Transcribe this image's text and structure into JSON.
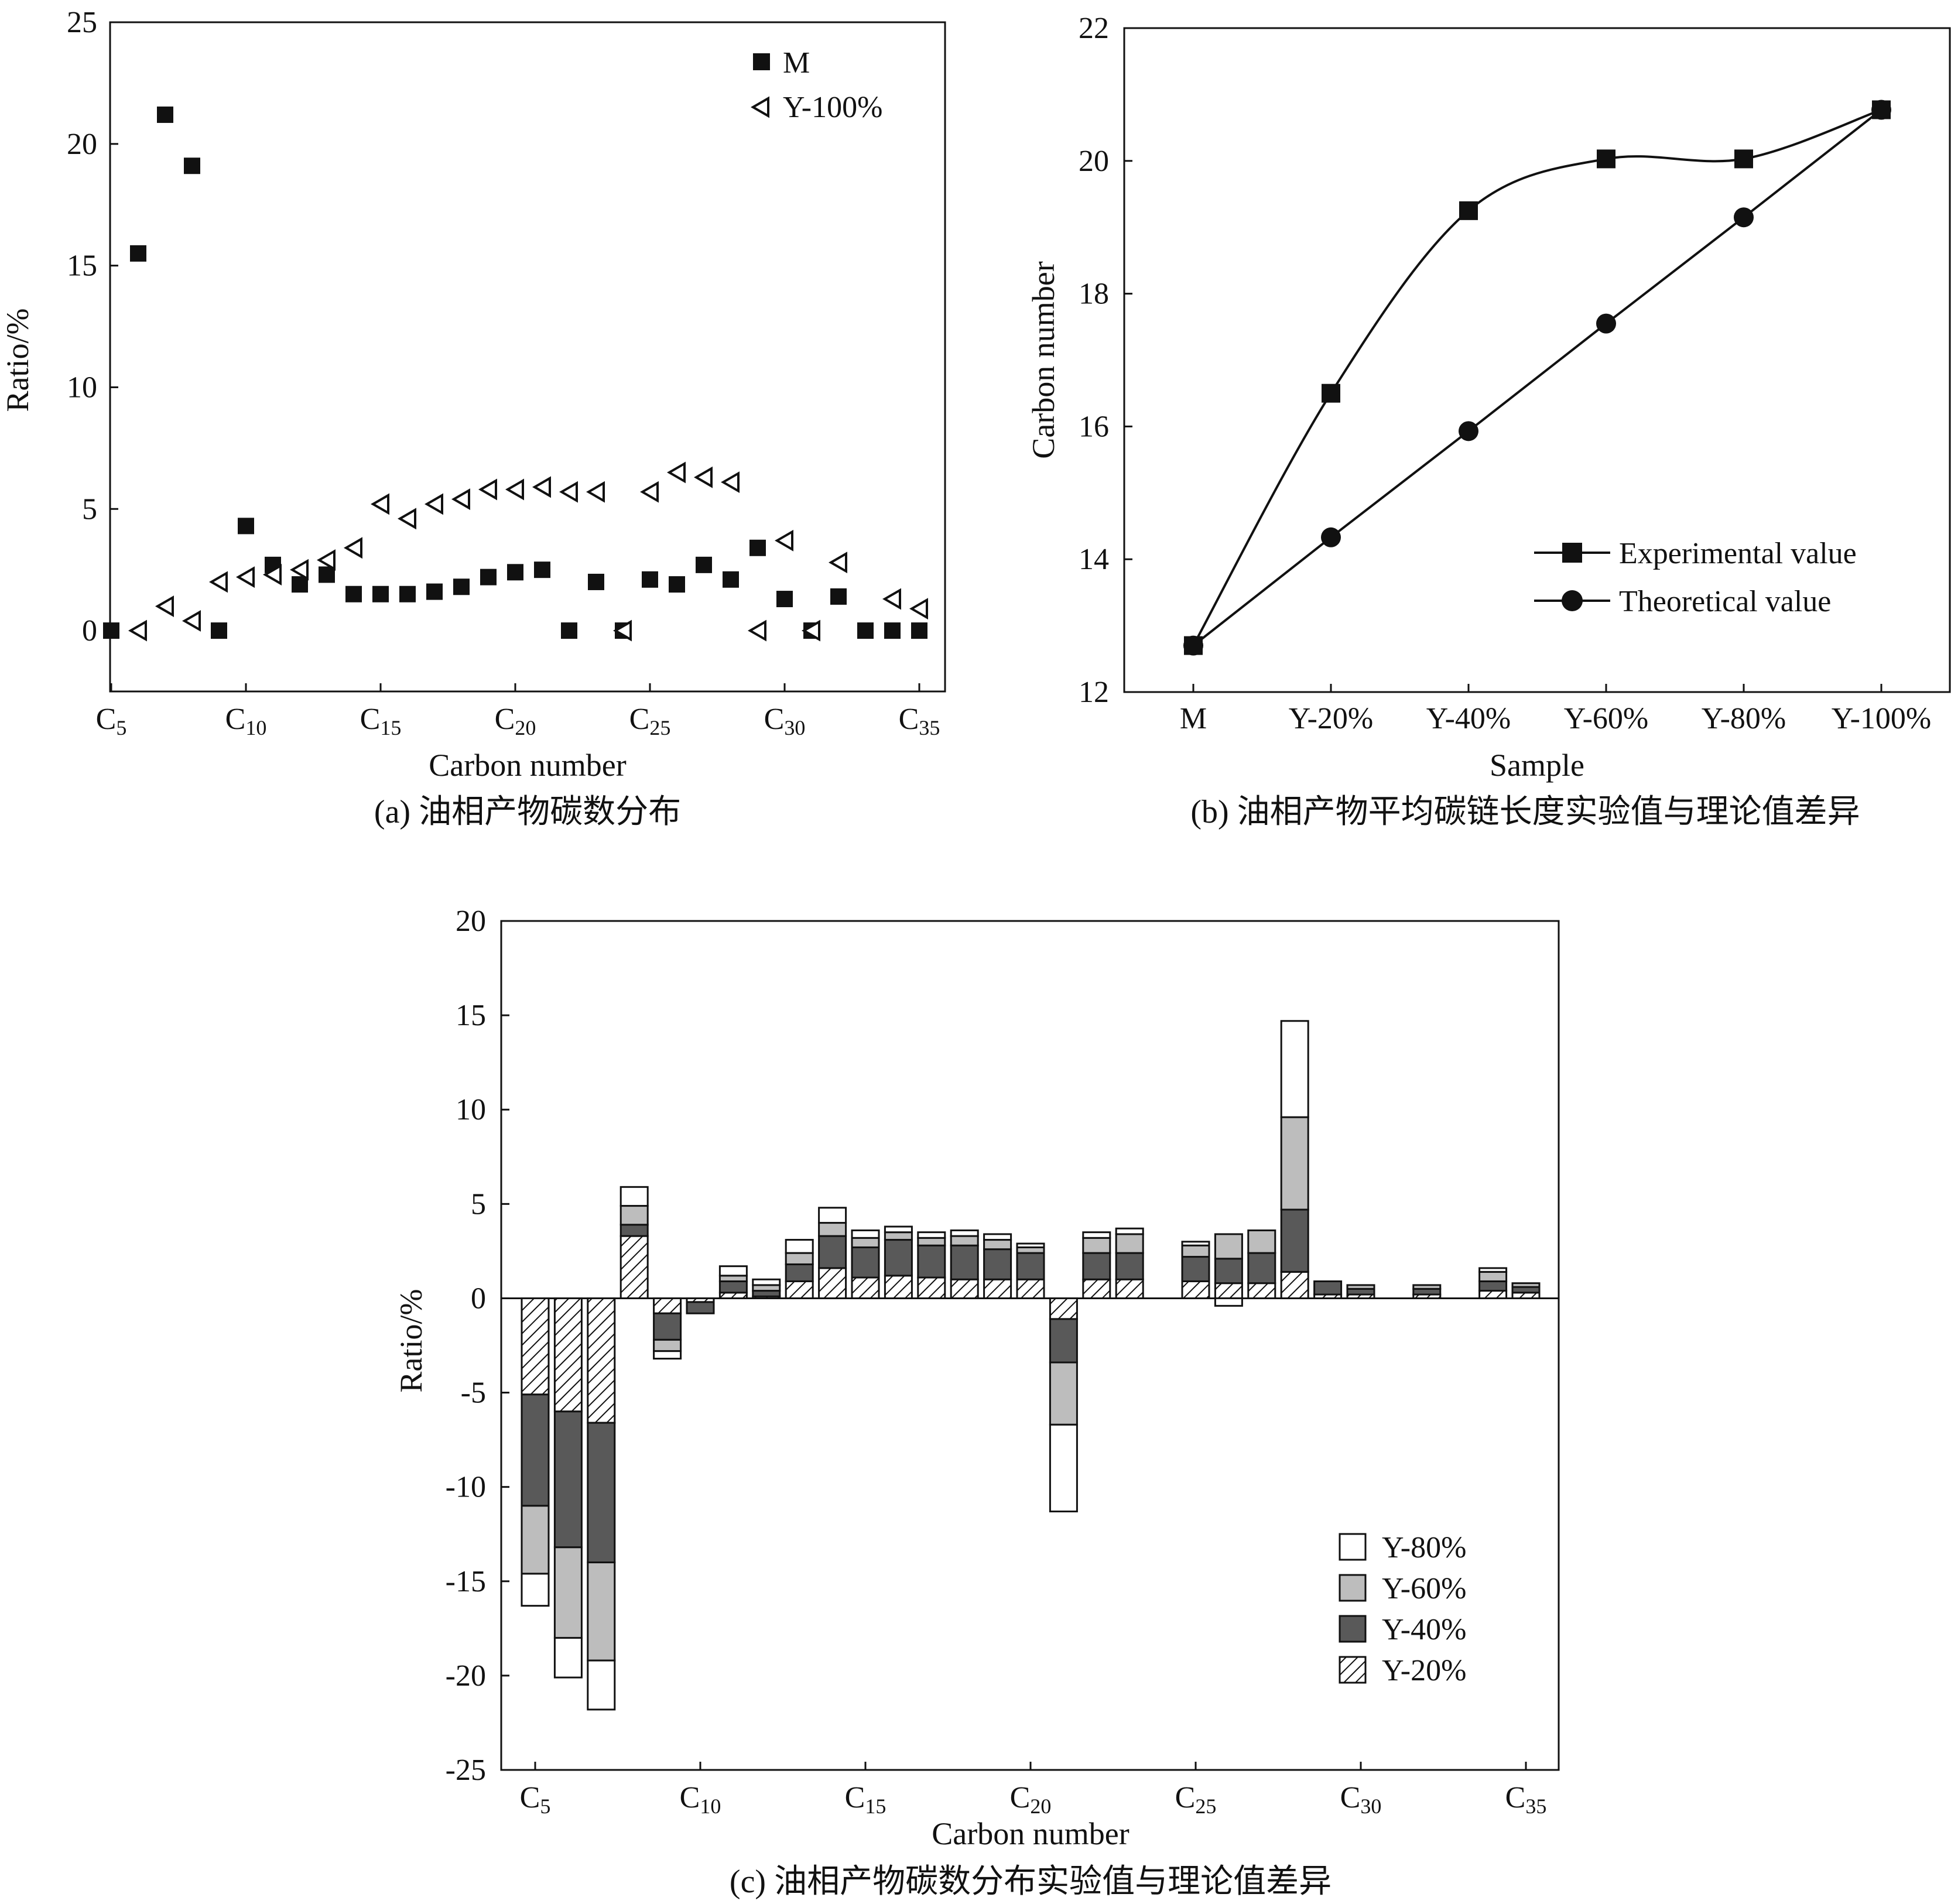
{
  "chart_data": [
    {
      "id": "a",
      "type": "scatter",
      "caption": "(a) 油相产物碳数分布",
      "xlabel": "Carbon number",
      "ylabel": "Ratio/%",
      "xlim": [
        5,
        36
      ],
      "ylim": [
        -2.5,
        25
      ],
      "yticks": [
        0,
        5,
        10,
        15,
        20,
        25
      ],
      "xticks": [
        {
          "value": 5,
          "main": "C",
          "sub": "5"
        },
        {
          "value": 10,
          "main": "C",
          "sub": "10"
        },
        {
          "value": 15,
          "main": "C",
          "sub": "15"
        },
        {
          "value": 20,
          "main": "C",
          "sub": "20"
        },
        {
          "value": 25,
          "main": "C",
          "sub": "25"
        },
        {
          "value": 30,
          "main": "C",
          "sub": "30"
        },
        {
          "value": 35,
          "main": "C",
          "sub": "35"
        }
      ],
      "legend_position": "top-right",
      "series": [
        {
          "name": "M",
          "marker": "filled-square",
          "x": [
            5,
            6,
            7,
            8,
            9,
            10,
            11,
            12,
            13,
            14,
            15,
            16,
            17,
            18,
            19,
            20,
            21,
            22,
            23,
            24,
            25,
            26,
            27,
            28,
            29,
            30,
            31,
            32,
            33,
            34,
            35
          ],
          "y": [
            0,
            15.5,
            21.2,
            19.1,
            0,
            4.3,
            2.7,
            1.9,
            2.3,
            1.5,
            1.5,
            1.5,
            1.6,
            1.8,
            2.2,
            2.4,
            2.5,
            0,
            2.0,
            0,
            2.1,
            1.9,
            2.7,
            2.1,
            3.4,
            1.3,
            0,
            1.4,
            0,
            0,
            0
          ]
        },
        {
          "name": "Y-100%",
          "marker": "open-left-triangle",
          "x": [
            6,
            7,
            8,
            9,
            10,
            11,
            12,
            13,
            14,
            15,
            16,
            17,
            18,
            19,
            20,
            21,
            22,
            23,
            24,
            25,
            26,
            27,
            28,
            29,
            30,
            31,
            32,
            34,
            35
          ],
          "y": [
            0,
            1.0,
            0.4,
            2.0,
            2.2,
            2.3,
            2.5,
            2.9,
            3.4,
            5.2,
            4.6,
            5.2,
            5.4,
            5.8,
            5.8,
            5.9,
            5.7,
            5.7,
            0,
            5.7,
            6.5,
            6.3,
            6.1,
            0,
            3.7,
            0,
            2.8,
            1.3,
            0.9
          ]
        }
      ]
    },
    {
      "id": "b",
      "type": "line",
      "caption": "(b) 油相产物平均碳链长度实验值与理论值差异",
      "xlabel": "Sample",
      "ylabel": "Carbon number",
      "categories": [
        "M",
        "Y-20%",
        "Y-40%",
        "Y-60%",
        "Y-80%",
        "Y-100%"
      ],
      "ylim": [
        12,
        22
      ],
      "yticks": [
        12,
        14,
        16,
        18,
        20,
        22
      ],
      "legend_position": "bottom-right",
      "series": [
        {
          "name": "Experimental value",
          "marker": "filled-square",
          "smooth": true,
          "values": [
            12.7,
            16.5,
            19.25,
            20.03,
            20.03,
            20.77
          ]
        },
        {
          "name": "Theoretical value",
          "marker": "filled-circle",
          "smooth": false,
          "values": [
            12.7,
            14.33,
            15.93,
            17.55,
            19.15,
            20.77
          ]
        }
      ]
    },
    {
      "id": "c",
      "type": "bar",
      "stacked": true,
      "caption": "(c) 油相产物碳数分布实验值与理论值差异",
      "xlabel": "Carbon number",
      "ylabel": "Ratio/%",
      "xlim": [
        4.5,
        36.5
      ],
      "ylim": [
        -25,
        20
      ],
      "yticks": [
        -25,
        -20,
        -15,
        -10,
        -5,
        0,
        5,
        10,
        15,
        20
      ],
      "xticks": [
        {
          "value": 5,
          "main": "C",
          "sub": "5"
        },
        {
          "value": 10,
          "main": "C",
          "sub": "10"
        },
        {
          "value": 15,
          "main": "C",
          "sub": "15"
        },
        {
          "value": 20,
          "main": "C",
          "sub": "20"
        },
        {
          "value": 25,
          "main": "C",
          "sub": "25"
        },
        {
          "value": 30,
          "main": "C",
          "sub": "30"
        },
        {
          "value": 35,
          "main": "C",
          "sub": "35"
        }
      ],
      "legend_position": "bottom-right",
      "legend_order": [
        "Y-80%",
        "Y-60%",
        "Y-40%",
        "Y-20%"
      ],
      "x": [
        5,
        6,
        7,
        8,
        9,
        10,
        11,
        12,
        13,
        14,
        15,
        16,
        17,
        18,
        19,
        20,
        21,
        22,
        23,
        25,
        26,
        27,
        28,
        29,
        30,
        32,
        34,
        35
      ],
      "series": [
        {
          "name": "Y-20%",
          "fill": "hatch",
          "values": [
            -5.1,
            -6.0,
            -6.6,
            3.3,
            -0.8,
            -0.2,
            0.3,
            0.1,
            0.9,
            1.6,
            1.1,
            1.2,
            1.1,
            1.0,
            1.0,
            1.0,
            -1.1,
            1.0,
            1.0,
            0.9,
            0.8,
            0.8,
            1.4,
            0.2,
            0.2,
            0.2,
            0.4,
            0.3
          ]
        },
        {
          "name": "Y-40%",
          "fill": "dark-gray",
          "values": [
            -5.9,
            -7.2,
            -7.4,
            0.6,
            -1.4,
            -0.6,
            0.6,
            0.3,
            0.9,
            1.7,
            1.6,
            1.9,
            1.7,
            1.8,
            1.6,
            1.4,
            -2.3,
            1.4,
            1.4,
            1.3,
            1.3,
            1.6,
            3.3,
            0.7,
            0.3,
            0.3,
            0.5,
            0.3
          ]
        },
        {
          "name": "Y-60%",
          "fill": "light-gray",
          "values": [
            -3.6,
            -4.8,
            -5.2,
            1.0,
            -0.6,
            0,
            0.3,
            0.3,
            0.6,
            0.7,
            0.5,
            0.4,
            0.4,
            0.5,
            0.5,
            0.3,
            -3.3,
            0.8,
            1.0,
            0.6,
            1.3,
            1.2,
            4.9,
            0,
            0.2,
            0.2,
            0.5,
            0.2
          ]
        },
        {
          "name": "Y-80%",
          "fill": "white",
          "values": [
            -1.7,
            -2.1,
            -2.6,
            1.0,
            -0.4,
            0,
            0.5,
            0.3,
            0.7,
            0.8,
            0.4,
            0.3,
            0.3,
            0.3,
            0.3,
            0.2,
            -4.6,
            0.3,
            0.3,
            0.2,
            0,
            0,
            5.1,
            0,
            0,
            0,
            0.2,
            0
          ],
          "extra_negative": {
            "26": -0.4
          }
        }
      ]
    }
  ]
}
